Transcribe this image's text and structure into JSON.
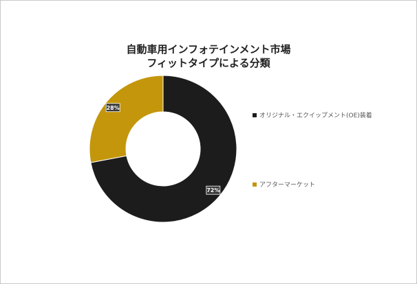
{
  "chart_data": {
    "type": "pie",
    "variant": "donut",
    "title": [
      "自動車用インフォテインメント市場",
      "フィットタイプによる分類"
    ],
    "categories": [
      "オリジナル・エクイップメント(OE)装着",
      "アフターマーケット"
    ],
    "values": [
      72,
      28
    ],
    "data_labels": [
      "72%",
      "28%"
    ],
    "colors": [
      "#1c1c1c",
      "#c4960c"
    ],
    "legend_position": "right"
  }
}
